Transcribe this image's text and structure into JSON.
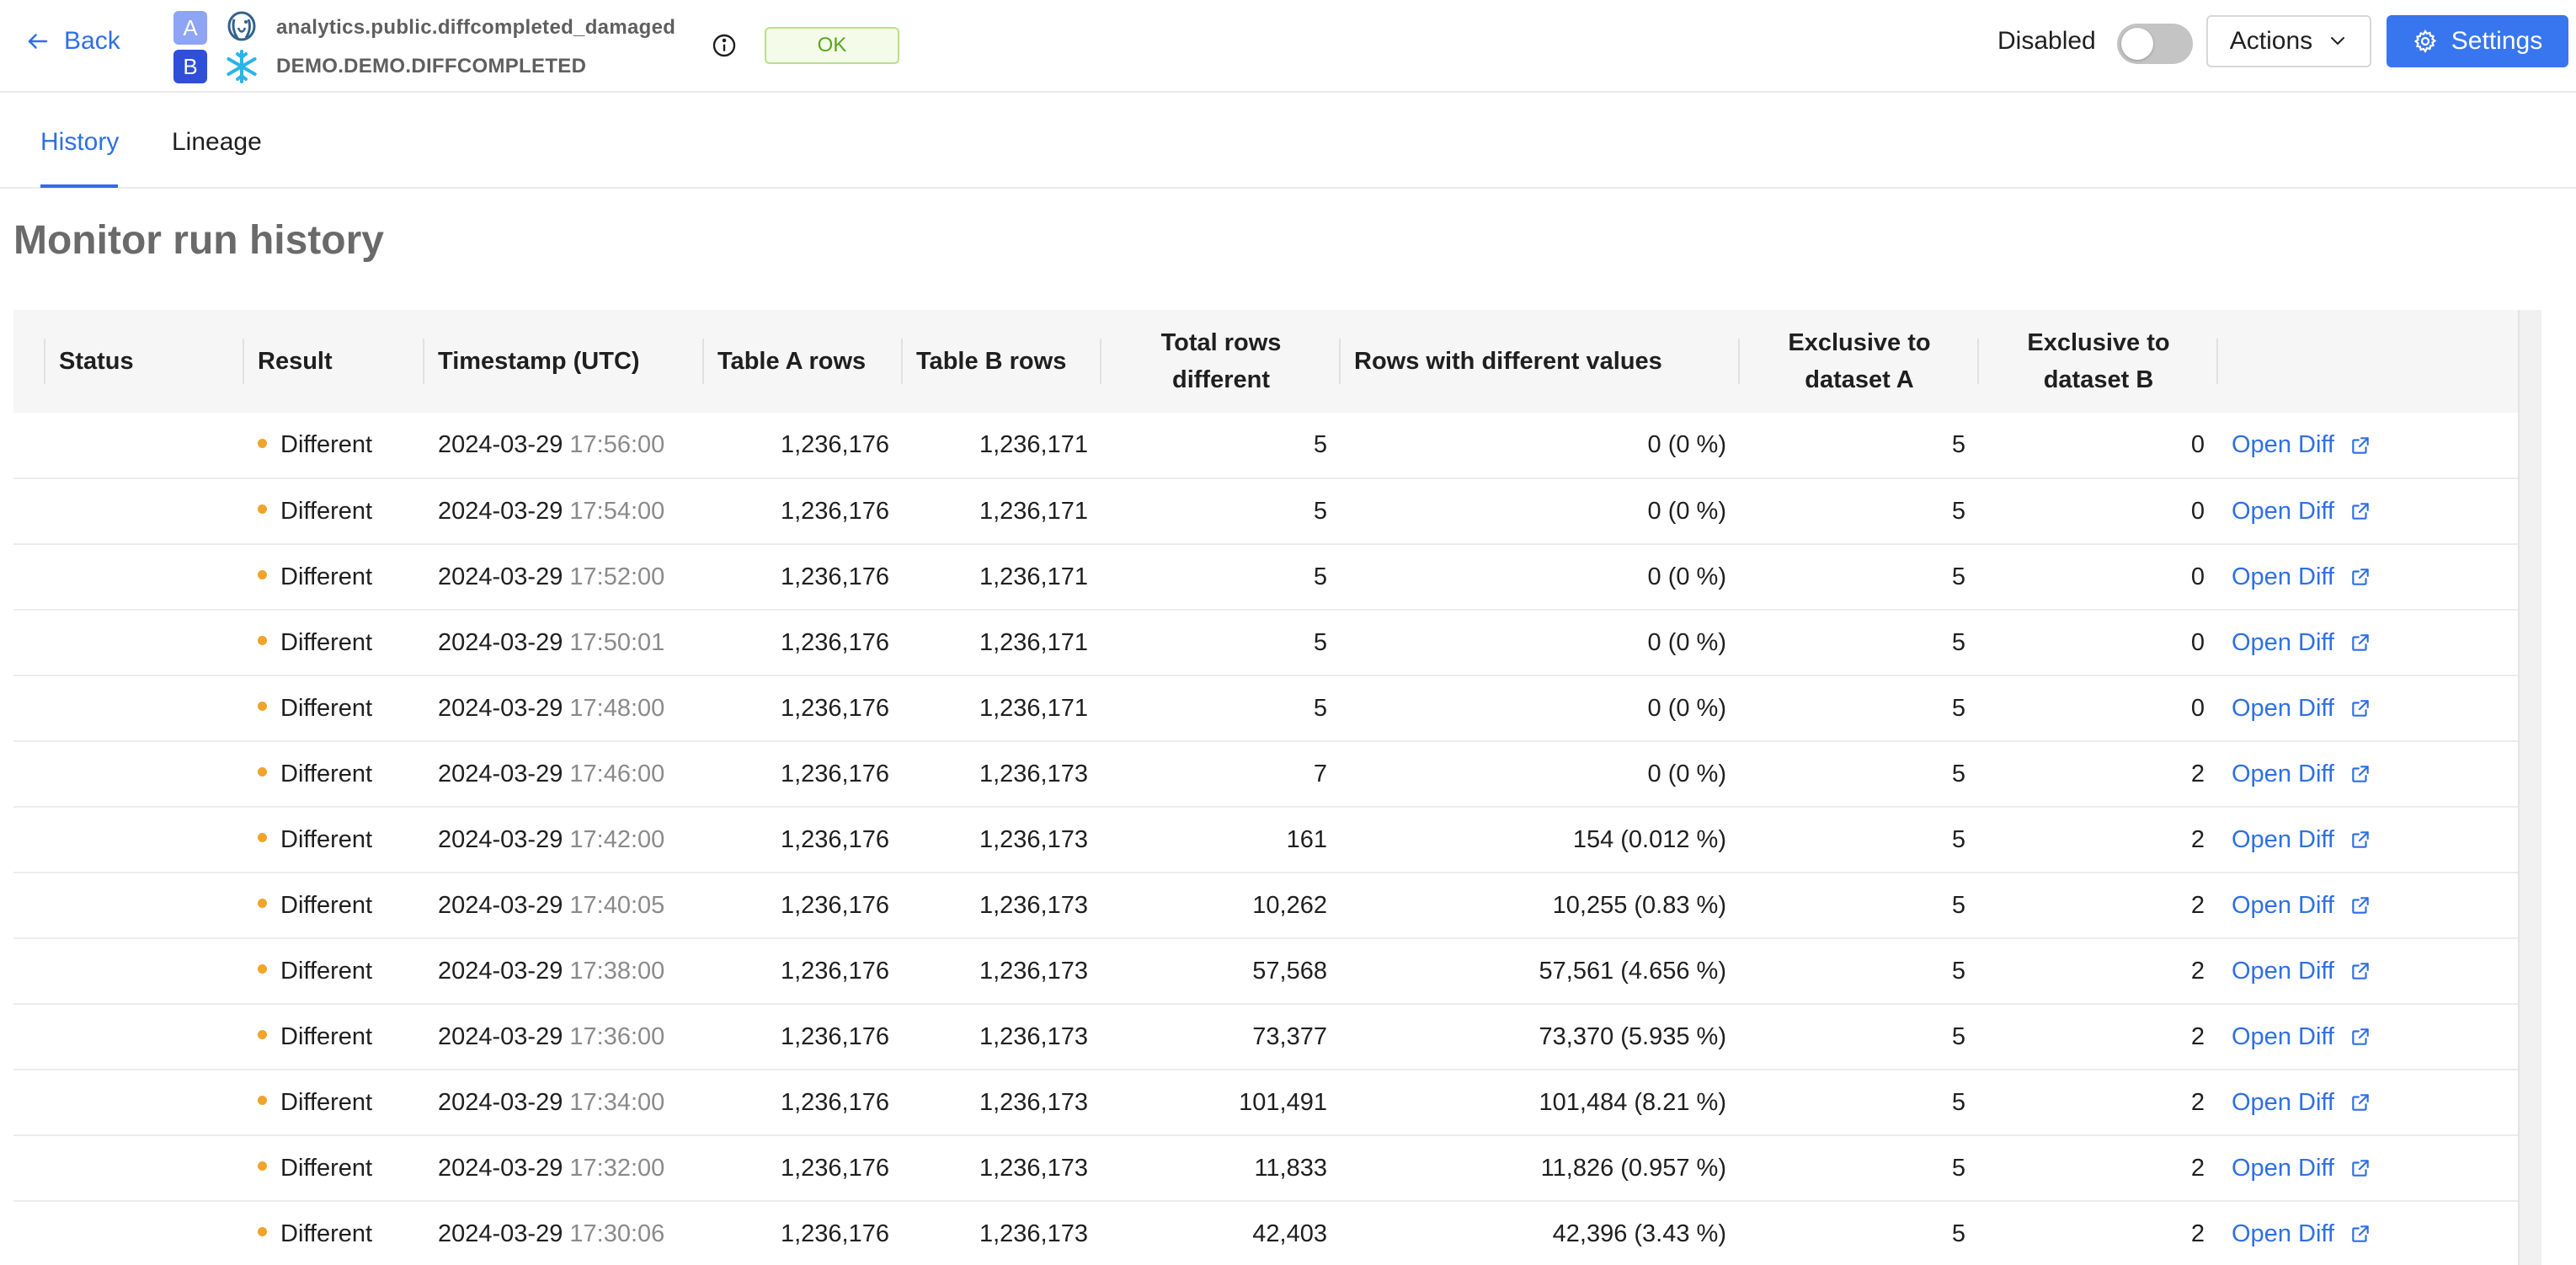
{
  "header": {
    "back_label": "Back",
    "dataset_a": {
      "badge": "A",
      "name": "analytics.public.diffcompleted_damaged",
      "logo_icon": "postgres-elephant-icon"
    },
    "dataset_b": {
      "badge": "B",
      "name": "DEMO.DEMO.DIFFCOMPLETED",
      "logo_icon": "snowflake-icon"
    },
    "status_badge": "OK",
    "toggle_label": "Disabled",
    "toggle_on": false,
    "actions_label": "Actions",
    "settings_label": "Settings"
  },
  "tabs": [
    {
      "label": "History",
      "active": true
    },
    {
      "label": "Lineage",
      "active": false
    }
  ],
  "page_title": "Monitor run history",
  "table": {
    "columns": {
      "status": "Status",
      "result": "Result",
      "timestamp": "Timestamp (UTC)",
      "table_a_rows": "Table A rows",
      "table_b_rows": "Table B rows",
      "total_rows_different_1": "Total rows",
      "total_rows_different_2": "different",
      "rows_with_different_values": "Rows with different values",
      "exclusive_a_1": "Exclusive to",
      "exclusive_a_2": "dataset A",
      "exclusive_b_1": "Exclusive to",
      "exclusive_b_2": "dataset B"
    },
    "open_diff_label": "Open Diff",
    "rows": [
      {
        "result": "Different",
        "date": "2024-03-29",
        "time": "17:56:00",
        "a_rows": "1,236,176",
        "b_rows": "1,236,171",
        "total_diff": "5",
        "diff_values": "0 (0 %)",
        "excl_a": "5",
        "excl_b": "0"
      },
      {
        "result": "Different",
        "date": "2024-03-29",
        "time": "17:54:00",
        "a_rows": "1,236,176",
        "b_rows": "1,236,171",
        "total_diff": "5",
        "diff_values": "0 (0 %)",
        "excl_a": "5",
        "excl_b": "0"
      },
      {
        "result": "Different",
        "date": "2024-03-29",
        "time": "17:52:00",
        "a_rows": "1,236,176",
        "b_rows": "1,236,171",
        "total_diff": "5",
        "diff_values": "0 (0 %)",
        "excl_a": "5",
        "excl_b": "0"
      },
      {
        "result": "Different",
        "date": "2024-03-29",
        "time": "17:50:01",
        "a_rows": "1,236,176",
        "b_rows": "1,236,171",
        "total_diff": "5",
        "diff_values": "0 (0 %)",
        "excl_a": "5",
        "excl_b": "0"
      },
      {
        "result": "Different",
        "date": "2024-03-29",
        "time": "17:48:00",
        "a_rows": "1,236,176",
        "b_rows": "1,236,171",
        "total_diff": "5",
        "diff_values": "0 (0 %)",
        "excl_a": "5",
        "excl_b": "0"
      },
      {
        "result": "Different",
        "date": "2024-03-29",
        "time": "17:46:00",
        "a_rows": "1,236,176",
        "b_rows": "1,236,173",
        "total_diff": "7",
        "diff_values": "0 (0 %)",
        "excl_a": "5",
        "excl_b": "2"
      },
      {
        "result": "Different",
        "date": "2024-03-29",
        "time": "17:42:00",
        "a_rows": "1,236,176",
        "b_rows": "1,236,173",
        "total_diff": "161",
        "diff_values": "154 (0.012 %)",
        "excl_a": "5",
        "excl_b": "2"
      },
      {
        "result": "Different",
        "date": "2024-03-29",
        "time": "17:40:05",
        "a_rows": "1,236,176",
        "b_rows": "1,236,173",
        "total_diff": "10,262",
        "diff_values": "10,255 (0.83 %)",
        "excl_a": "5",
        "excl_b": "2"
      },
      {
        "result": "Different",
        "date": "2024-03-29",
        "time": "17:38:00",
        "a_rows": "1,236,176",
        "b_rows": "1,236,173",
        "total_diff": "57,568",
        "diff_values": "57,561 (4.656 %)",
        "excl_a": "5",
        "excl_b": "2"
      },
      {
        "result": "Different",
        "date": "2024-03-29",
        "time": "17:36:00",
        "a_rows": "1,236,176",
        "b_rows": "1,236,173",
        "total_diff": "73,377",
        "diff_values": "73,370 (5.935 %)",
        "excl_a": "5",
        "excl_b": "2"
      },
      {
        "result": "Different",
        "date": "2024-03-29",
        "time": "17:34:00",
        "a_rows": "1,236,176",
        "b_rows": "1,236,173",
        "total_diff": "101,491",
        "diff_values": "101,484 (8.21 %)",
        "excl_a": "5",
        "excl_b": "2"
      },
      {
        "result": "Different",
        "date": "2024-03-29",
        "time": "17:32:00",
        "a_rows": "1,236,176",
        "b_rows": "1,236,173",
        "total_diff": "11,833",
        "diff_values": "11,826 (0.957 %)",
        "excl_a": "5",
        "excl_b": "2"
      },
      {
        "result": "Different",
        "date": "2024-03-29",
        "time": "17:30:06",
        "a_rows": "1,236,176",
        "b_rows": "1,236,173",
        "total_diff": "42,403",
        "diff_values": "42,396 (3.43 %)",
        "excl_a": "5",
        "excl_b": "2"
      }
    ]
  },
  "colors": {
    "accent": "#2f6fe4",
    "primary_button": "#3876f0",
    "ok_green": "#58a61b",
    "result_dot": "#f0a42a",
    "badge_a": "#8ea4f4",
    "badge_b": "#2f4fd8"
  }
}
